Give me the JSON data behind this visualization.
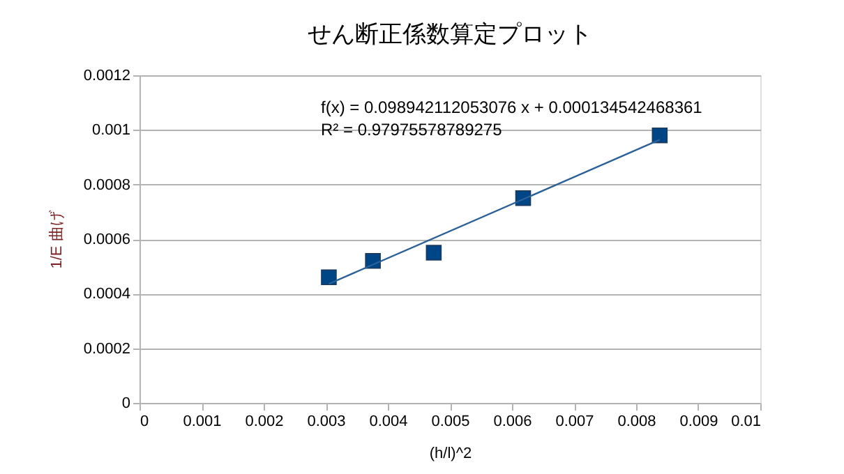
{
  "chart_data": {
    "type": "scatter",
    "title": "せん断正係数算定プロット",
    "xlabel": "(h/l)^2",
    "ylabel": "1/E 曲げ",
    "annotations": [
      "f(x) = 0.098942112053076 x + 0.000134542468361",
      "R² = 0.97975578789275"
    ],
    "series": [
      {
        "type": "scatter",
        "color": "#004586",
        "marker": "square",
        "x": [
          0.00305,
          0.00376,
          0.00474,
          0.00618,
          0.00838
        ],
        "values": [
          0.00046,
          0.00052,
          0.00055,
          0.00075,
          0.00098
        ]
      },
      {
        "type": "line",
        "color": "#2a6099",
        "marker": "none",
        "line_style": "solid",
        "x": [
          0.00305,
          0.00838
        ],
        "values": [
          0.000436,
          0.000964
        ]
      }
    ],
    "xlim": [
      0,
      0.01
    ],
    "xticks": [
      0,
      0.001,
      0.002,
      0.003,
      0.004,
      0.005,
      0.006,
      0.007,
      0.008,
      0.009,
      0.01
    ],
    "ylim": [
      0,
      0.0012
    ],
    "yticks": [
      0,
      0.0002,
      0.0004,
      0.0006,
      0.0008,
      0.001,
      0.0012
    ],
    "grid": "y",
    "legend": false
  }
}
